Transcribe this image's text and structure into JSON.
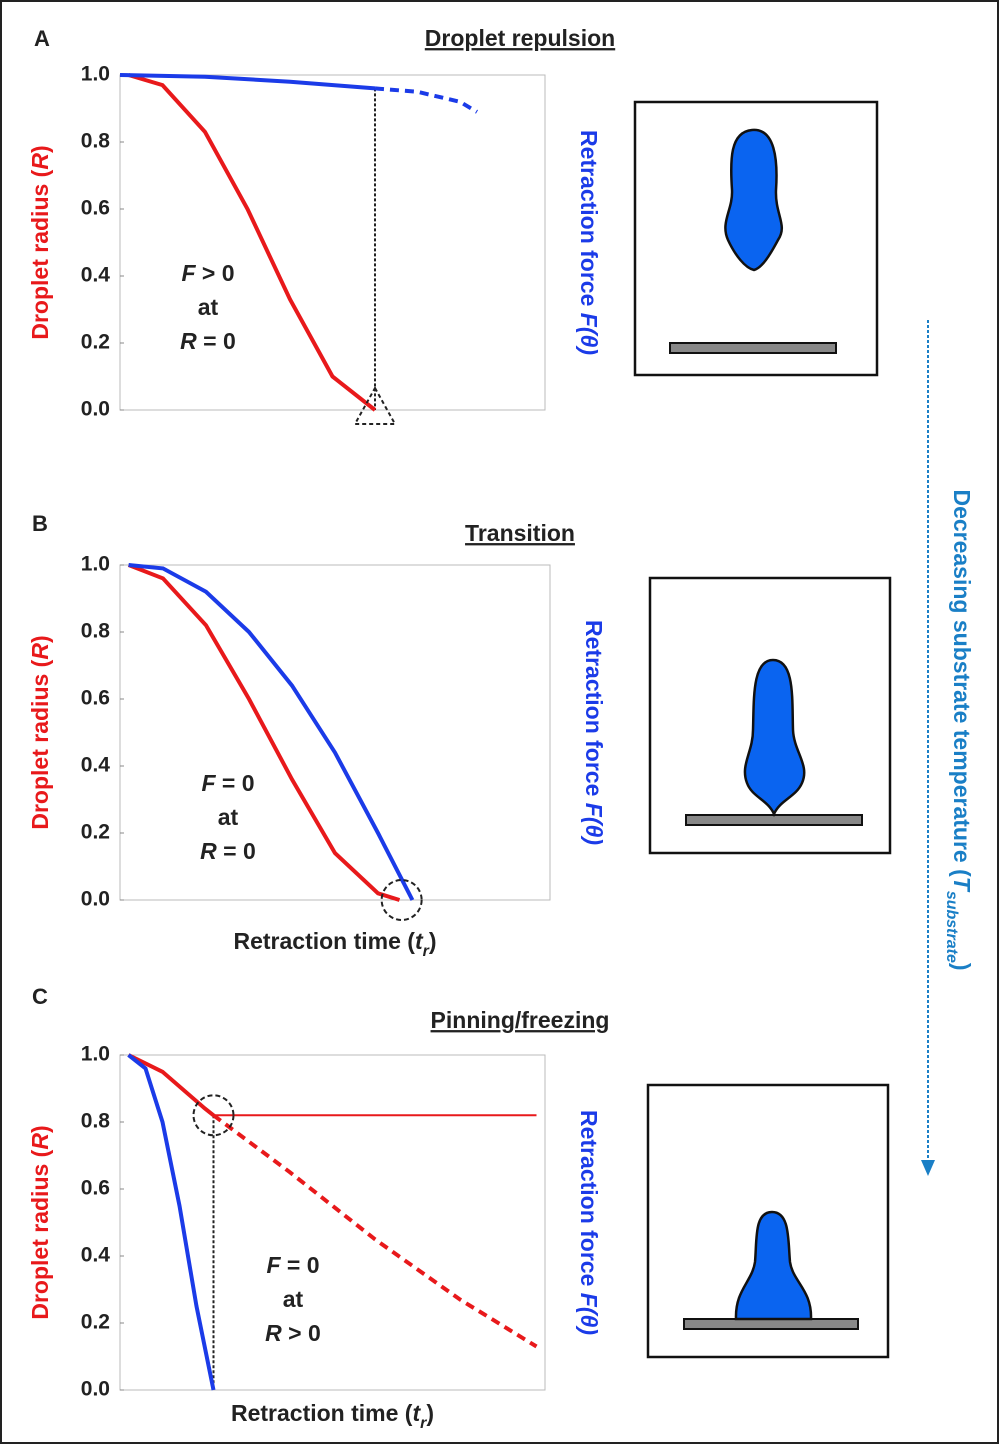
{
  "chart_data": [
    {
      "type": "line",
      "panel_label": "A",
      "title": "Droplet repulsion",
      "y_label": [
        "Droplet radius (",
        "R",
        ")"
      ],
      "y2_label": [
        "Retraction force ",
        "F(θ)"
      ],
      "annotation": [
        [
          "F",
          " > 0"
        ],
        [
          "at"
        ],
        [
          "R",
          " = 0"
        ]
      ],
      "xlim": [
        0,
        1
      ],
      "ylim": [
        0,
        1
      ],
      "yticks": [
        {
          "value": 0,
          "label": "0.0"
        },
        0.2,
        0.4,
        0.6,
        0.8,
        {
          "value": 1,
          "label": "1.0"
        }
      ],
      "series": [
        {
          "color": "#e8191b",
          "dashed": false,
          "x": [
            0.02,
            0.1,
            0.2,
            0.3,
            0.4,
            0.5,
            0.6
          ],
          "values": [
            1.0,
            0.97,
            0.83,
            0.6,
            0.33,
            0.1,
            0.0
          ]
        },
        {
          "color": "#1b3be8",
          "dashed": false,
          "x": [
            0.0,
            0.2,
            0.4,
            0.6
          ],
          "values": [
            1.0,
            0.995,
            0.98,
            0.96
          ]
        },
        {
          "color": "#1b3be8",
          "dashed": true,
          "x": [
            0.6,
            0.7,
            0.8,
            0.84
          ],
          "values": [
            0.96,
            0.95,
            0.92,
            0.89
          ]
        }
      ],
      "drop_line": {
        "x": 0.6,
        "y": 0.96
      },
      "marker": {
        "shape": "triangle",
        "x": 0.6,
        "y": 0.0
      }
    },
    {
      "type": "line",
      "panel_label": "B",
      "title": "Transition",
      "y_label": [
        "Droplet radius (",
        "R",
        ")"
      ],
      "y2_label": [
        "Retraction force ",
        "F(θ)"
      ],
      "x_label": [
        "Retraction time (",
        "t",
        "r",
        ")"
      ],
      "annotation": [
        [
          "F",
          " = 0"
        ],
        [
          "at"
        ],
        [
          "R",
          " = 0"
        ]
      ],
      "xlim": [
        0,
        1
      ],
      "ylim": [
        0,
        1
      ],
      "yticks": [
        {
          "value": 0,
          "label": "0.0"
        },
        0.2,
        0.4,
        0.6,
        0.8,
        {
          "value": 1,
          "label": "1.0"
        }
      ],
      "series": [
        {
          "color": "#e8191b",
          "dashed": false,
          "x": [
            0.02,
            0.1,
            0.2,
            0.3,
            0.4,
            0.5,
            0.6,
            0.65
          ],
          "values": [
            1.0,
            0.96,
            0.82,
            0.6,
            0.36,
            0.14,
            0.02,
            0.0
          ]
        },
        {
          "color": "#1b3be8",
          "dashed": false,
          "x": [
            0.02,
            0.1,
            0.2,
            0.3,
            0.4,
            0.5,
            0.6,
            0.68
          ],
          "values": [
            1.0,
            0.99,
            0.92,
            0.8,
            0.64,
            0.44,
            0.2,
            0.0
          ]
        }
      ],
      "marker": {
        "shape": "circle",
        "x": 0.655,
        "y": 0.0
      }
    },
    {
      "type": "line",
      "panel_label": "C",
      "title": "Pinning/freezing",
      "y_label": [
        "Droplet radius (",
        "R",
        ")"
      ],
      "y2_label": [
        "Retraction force ",
        "F(θ)"
      ],
      "x_label": [
        "Retraction time (",
        "t",
        "r",
        ")"
      ],
      "annotation": [
        [
          "F",
          " = 0"
        ],
        [
          "at"
        ],
        [
          "R",
          " > 0"
        ]
      ],
      "xlim": [
        0,
        1
      ],
      "ylim": [
        0,
        1
      ],
      "yticks": [
        {
          "value": 0,
          "label": "0.0"
        },
        0.2,
        0.4,
        0.6,
        0.8,
        {
          "value": 1,
          "label": "1.0"
        }
      ],
      "series": [
        {
          "color": "#e8191b",
          "dashed": false,
          "x": [
            0.02,
            0.1,
            0.2,
            0.22
          ],
          "values": [
            1.0,
            0.95,
            0.84,
            0.82
          ]
        },
        {
          "color": "#e8191b",
          "dashed": true,
          "x": [
            0.22,
            0.4,
            0.6,
            0.8,
            0.98
          ],
          "values": [
            0.82,
            0.65,
            0.45,
            0.27,
            0.13
          ]
        },
        {
          "color": "#e8191b",
          "dashed": false,
          "thin": true,
          "x": [
            0.22,
            0.98
          ],
          "values": [
            0.82,
            0.82
          ]
        },
        {
          "color": "#1b3be8",
          "dashed": false,
          "x": [
            0.02,
            0.06,
            0.1,
            0.14,
            0.18,
            0.22
          ],
          "values": [
            1.0,
            0.96,
            0.8,
            0.55,
            0.25,
            0.0
          ]
        }
      ],
      "drop_line": {
        "x": 0.22,
        "y": 0.82
      },
      "marker": {
        "shape": "circle",
        "x": 0.22,
        "y": 0.82
      }
    }
  ],
  "side_label": [
    "Decreasing substrate temperature (",
    "T",
    "substrate",
    ")"
  ]
}
